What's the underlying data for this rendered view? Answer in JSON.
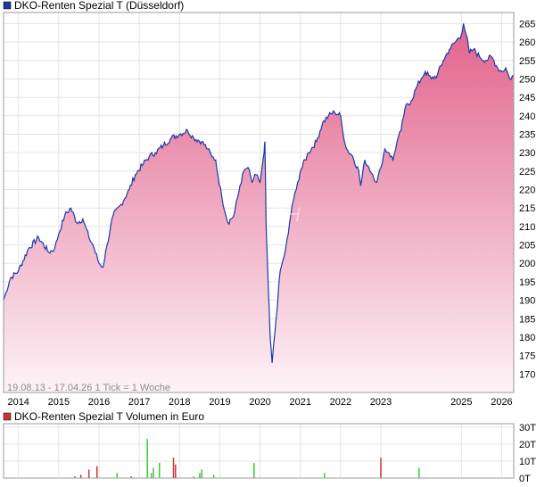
{
  "chart_data": [
    {
      "type": "area",
      "legend": "DKO-Renten Spezial T (Düsseldorf)",
      "legend_color": "#1a3a9c",
      "line_color": "#1a3aa8",
      "fill_top_color": "#e2628c",
      "fill_bottom_color": "#fdf3f6",
      "info": "19.08.13 - 17.04.26   1 Tick = 1 Woche",
      "watermark": "CH",
      "ylim": [
        165,
        268
      ],
      "yticks": [
        "170",
        "175",
        "180",
        "185",
        "190",
        "195",
        "200",
        "205",
        "210",
        "215",
        "220",
        "225",
        "230",
        "235",
        "240",
        "245",
        "250",
        "255",
        "260",
        "265"
      ],
      "xlim": [
        2013.63,
        2026.3
      ],
      "xticks": [
        "2014",
        "2015",
        "2016",
        "2017",
        "2018",
        "2019",
        "2020",
        "2021",
        "2022",
        "2023",
        "2025",
        "2026"
      ],
      "xtick_positions": [
        2014.0,
        2015.0,
        2016.0,
        2017.0,
        2018.0,
        2019.0,
        2020.0,
        2021.0,
        2022.0,
        2023.0,
        2025.0,
        2026.0
      ],
      "grid": true,
      "x": [
        2013.63,
        2013.8,
        2014.0,
        2014.25,
        2014.5,
        2014.75,
        2014.9,
        2015.0,
        2015.15,
        2015.3,
        2015.45,
        2015.6,
        2015.75,
        2015.85,
        2016.0,
        2016.1,
        2016.2,
        2016.35,
        2016.55,
        2016.75,
        2016.9,
        2017.1,
        2017.25,
        2017.4,
        2017.6,
        2017.8,
        2018.0,
        2018.2,
        2018.35,
        2018.55,
        2018.7,
        2018.8,
        2018.9,
        2018.95,
        2019.05,
        2019.2,
        2019.35,
        2019.5,
        2019.6,
        2019.7,
        2019.8,
        2019.9,
        2020.0,
        2020.05,
        2020.1,
        2020.12,
        2020.15,
        2020.2,
        2020.25,
        2020.3,
        2020.4,
        2020.5,
        2020.6,
        2020.7,
        2020.8,
        2020.9,
        2021.0,
        2021.2,
        2021.4,
        2021.55,
        2021.7,
        2021.85,
        2022.0,
        2022.05,
        2022.15,
        2022.3,
        2022.45,
        2022.5,
        2022.6,
        2022.7,
        2022.8,
        2022.9,
        2023.0,
        2023.1,
        2023.2,
        2023.3,
        2023.4,
        2023.5,
        2023.6,
        2023.75,
        2023.9,
        2024.0,
        2024.1,
        2024.25,
        2024.4,
        2024.55,
        2024.7,
        2024.85,
        2025.0,
        2025.05,
        2025.12,
        2025.2,
        2025.3,
        2025.45,
        2025.6,
        2025.75,
        2025.9,
        2026.0,
        2026.1,
        2026.2,
        2026.3
      ],
      "y": [
        190.0,
        196.0,
        198.0,
        204.0,
        207.0,
        203.0,
        204.0,
        208.0,
        213.0,
        215.0,
        211.0,
        212.0,
        207.0,
        205.0,
        200.0,
        199.0,
        205.0,
        213.0,
        216.0,
        220.0,
        224.0,
        227.0,
        229.0,
        230.0,
        232.0,
        234.0,
        235.0,
        236.0,
        234.0,
        233.0,
        231.0,
        229.0,
        228.0,
        224.0,
        218.0,
        211.0,
        213.0,
        221.0,
        225.0,
        226.0,
        222.0,
        224.0,
        222.0,
        226.0,
        230.0,
        233.0,
        210.0,
        195.0,
        180.0,
        173.0,
        185.0,
        198.0,
        202.0,
        208.0,
        216.0,
        220.0,
        225.0,
        230.0,
        233.0,
        238.0,
        240.0,
        241.0,
        240.0,
        236.0,
        231.0,
        229.0,
        225.0,
        221.0,
        228.0,
        226.0,
        224.0,
        222.0,
        226.0,
        231.0,
        230.0,
        228.0,
        233.0,
        236.0,
        242.0,
        244.0,
        248.0,
        250.0,
        252.0,
        250.0,
        251.0,
        255.0,
        258.0,
        260.0,
        262.0,
        265.0,
        262.0,
        257.0,
        258.0,
        256.0,
        255.0,
        256.0,
        253.0,
        252.0,
        253.0,
        250.0,
        251.0
      ]
    },
    {
      "type": "bar",
      "legend": "DKO-Renten Spezial T Volumen in Euro",
      "legend_color": "#cc3333",
      "up_color": "#33cc33",
      "down_color": "#cc3333",
      "ylim": [
        0,
        32
      ],
      "yticks": [
        "0T",
        "10T",
        "20T",
        "30T"
      ],
      "ytick_values": [
        0,
        10,
        20,
        30
      ],
      "grid": true,
      "x": [
        2015.4,
        2015.55,
        2015.75,
        2015.95,
        2016.45,
        2016.8,
        2017.2,
        2017.3,
        2017.35,
        2017.5,
        2017.85,
        2017.9,
        2018.35,
        2018.5,
        2018.55,
        2018.85,
        2019.85,
        2021.6,
        2023.0,
        2023.95
      ],
      "values": [
        1,
        2,
        5,
        7,
        3,
        1,
        23,
        3,
        6,
        9,
        12,
        8,
        1,
        3,
        5,
        2,
        9,
        3,
        12,
        6
      ],
      "directions": [
        "down",
        "down",
        "down",
        "down",
        "up",
        "down",
        "up",
        "up",
        "up",
        "up",
        "down",
        "down",
        "up",
        "up",
        "up",
        "up",
        "up",
        "up",
        "down",
        "up"
      ]
    }
  ]
}
